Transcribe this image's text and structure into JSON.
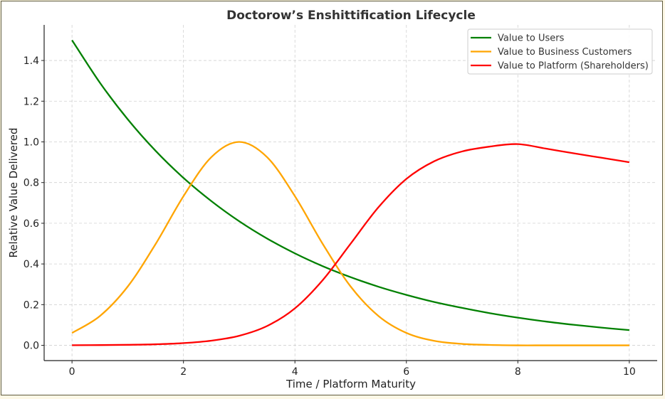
{
  "chart_data": {
    "type": "line",
    "title": "Doctorow’s Enshittification Lifecycle",
    "xlabel": "Time / Platform Maturity",
    "ylabel": "Relative Value Delivered",
    "xlim": [
      -0.5,
      10.5
    ],
    "ylim": [
      -0.075,
      1.575
    ],
    "xticks": [
      0,
      2,
      4,
      6,
      8,
      10
    ],
    "xtick_labels": [
      "0",
      "2",
      "4",
      "6",
      "8",
      "10"
    ],
    "yticks": [
      0,
      0.2,
      0.4,
      0.6,
      0.8,
      1.0,
      1.2,
      1.4
    ],
    "ytick_labels": [
      "0.0",
      "0.2",
      "0.4",
      "0.6",
      "0.8",
      "1.0",
      "1.2",
      "1.4"
    ],
    "grid": true,
    "legend_position": "top-right",
    "x": [
      0,
      0.5,
      1,
      1.5,
      2,
      2.5,
      3,
      3.5,
      4,
      4.5,
      5,
      5.5,
      6,
      6.5,
      7,
      7.5,
      8,
      8.5,
      9,
      9.5,
      10
    ],
    "series": [
      {
        "name": "Value to Users",
        "color": "#008000",
        "values": [
          1.5,
          1.291,
          1.111,
          0.956,
          0.823,
          0.709,
          0.61,
          0.525,
          0.452,
          0.389,
          0.335,
          0.288,
          0.248,
          0.213,
          0.184,
          0.158,
          0.136,
          0.117,
          0.101,
          0.087,
          0.075
        ]
      },
      {
        "name": "Value to Business Customers",
        "color": "#ffa500",
        "values": [
          0.061,
          0.144,
          0.289,
          0.498,
          0.733,
          0.925,
          1.0,
          0.925,
          0.733,
          0.498,
          0.289,
          0.144,
          0.061,
          0.022,
          0.007,
          0.002,
          0.0,
          0.0,
          0.0,
          0.0,
          0.0
        ]
      },
      {
        "name": "Value to Platform (Shareholders)",
        "color": "#ff0000",
        "values": [
          0.0006,
          0.0012,
          0.0025,
          0.0052,
          0.011,
          0.023,
          0.047,
          0.095,
          0.182,
          0.321,
          0.5,
          0.679,
          0.818,
          0.905,
          0.953,
          0.977,
          0.989,
          0.967,
          0.944,
          0.922,
          0.9
        ]
      }
    ]
  }
}
